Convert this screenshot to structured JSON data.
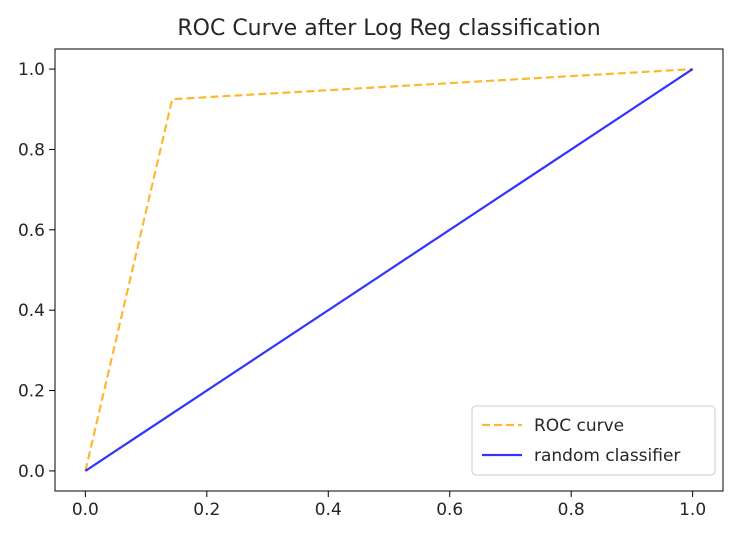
{
  "chart_data": {
    "type": "line",
    "title": "ROC Curve after Log Reg classification",
    "xlabel": "",
    "ylabel": "",
    "xlim": [
      -0.05,
      1.05
    ],
    "ylim": [
      -0.05,
      1.05
    ],
    "x_ticks": [
      "0.0",
      "0.2",
      "0.4",
      "0.6",
      "0.8",
      "1.0"
    ],
    "y_ticks": [
      "0.0",
      "0.2",
      "0.4",
      "0.6",
      "0.8",
      "1.0"
    ],
    "grid": false,
    "legend_position": "lower right",
    "series": [
      {
        "name": "ROC curve",
        "color": "#ffa500",
        "style": "dashed",
        "x": [
          0.0,
          0.143,
          1.0
        ],
        "y": [
          0.0,
          0.925,
          1.0
        ]
      },
      {
        "name": "random classifier",
        "color": "#0000ff",
        "style": "solid",
        "x": [
          0.0,
          1.0
        ],
        "y": [
          0.0,
          1.0
        ]
      }
    ]
  }
}
